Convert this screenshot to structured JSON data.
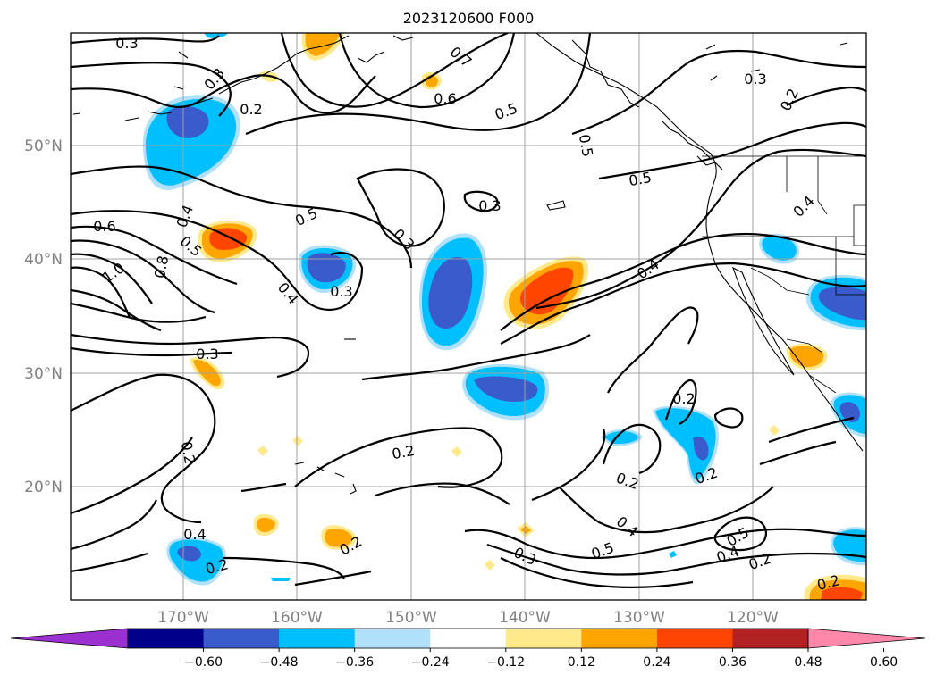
{
  "title": "2023120600 F000",
  "lat_labels": [
    "50°N",
    "40°N",
    "30°N",
    "20°N"
  ],
  "lon_labels": [
    "170°W",
    "160°W",
    "150°W",
    "140°W",
    "130°W",
    "120°W"
  ],
  "colorbar": {
    "ticks": [
      "−0.60",
      "−0.48",
      "−0.36",
      "−0.24",
      "−0.12",
      "0.12",
      "0.24",
      "0.36",
      "0.48",
      "0.60"
    ],
    "colors": [
      "#9b30d0",
      "#00008b",
      "#3a5bcc",
      "#00bfff",
      "#b0e0fa",
      "#ffffff",
      "#ffe98a",
      "#ffa500",
      "#ff4500",
      "#b22222",
      "#ff88aa"
    ]
  },
  "shading_colors": {
    "neg_weak": "#b0e0fa",
    "neg_mid": "#00bfff",
    "neg_strong": "#3a5bcc",
    "pos_weak": "#ffe98a",
    "pos_mid": "#ffa500",
    "pos_strong": "#ff4500"
  },
  "contour_labels": [
    "0.3",
    "0.3",
    "0.2",
    "0.7",
    "0.6",
    "0.5",
    "0.3",
    "0.2",
    "0.5",
    "0.5",
    "0.3",
    "0.3",
    "0.6",
    "0.4",
    "0.5",
    "0.8",
    "1.0",
    "0.4",
    "0.3",
    "0.5",
    "0.4",
    "0.4",
    "0.3",
    "0.2",
    "0.2",
    "0.2",
    "0.2",
    "0.2",
    "0.4",
    "0.5",
    "0.3",
    "0.5",
    "0.4",
    "0.2",
    "0.4",
    "0.2",
    "0.2",
    "0.2"
  ]
}
